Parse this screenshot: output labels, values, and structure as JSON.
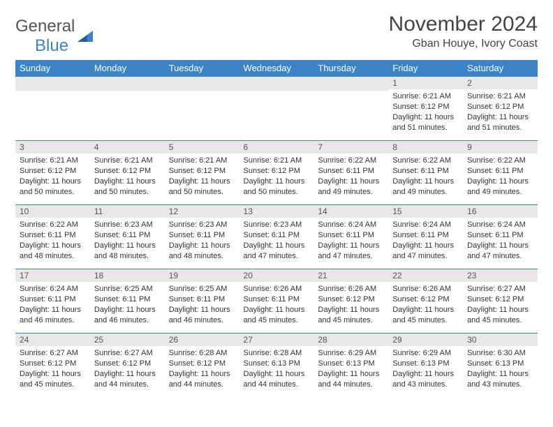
{
  "logo": {
    "text1": "General",
    "text2": "Blue"
  },
  "title": "November 2024",
  "location": "Gban Houye, Ivory Coast",
  "colors": {
    "header_bg": "#3d84c6",
    "header_fg": "#ffffff",
    "daynum_bg": "#e8e8e8",
    "rule": "#3d84c6",
    "text": "#333333"
  },
  "weekdays": [
    "Sunday",
    "Monday",
    "Tuesday",
    "Wednesday",
    "Thursday",
    "Friday",
    "Saturday"
  ],
  "weeks": [
    [
      null,
      null,
      null,
      null,
      null,
      {
        "n": "1",
        "sr": "6:21 AM",
        "ss": "6:12 PM",
        "dl": "11 hours and 51 minutes."
      },
      {
        "n": "2",
        "sr": "6:21 AM",
        "ss": "6:12 PM",
        "dl": "11 hours and 51 minutes."
      }
    ],
    [
      {
        "n": "3",
        "sr": "6:21 AM",
        "ss": "6:12 PM",
        "dl": "11 hours and 50 minutes."
      },
      {
        "n": "4",
        "sr": "6:21 AM",
        "ss": "6:12 PM",
        "dl": "11 hours and 50 minutes."
      },
      {
        "n": "5",
        "sr": "6:21 AM",
        "ss": "6:12 PM",
        "dl": "11 hours and 50 minutes."
      },
      {
        "n": "6",
        "sr": "6:21 AM",
        "ss": "6:12 PM",
        "dl": "11 hours and 50 minutes."
      },
      {
        "n": "7",
        "sr": "6:22 AM",
        "ss": "6:11 PM",
        "dl": "11 hours and 49 minutes."
      },
      {
        "n": "8",
        "sr": "6:22 AM",
        "ss": "6:11 PM",
        "dl": "11 hours and 49 minutes."
      },
      {
        "n": "9",
        "sr": "6:22 AM",
        "ss": "6:11 PM",
        "dl": "11 hours and 49 minutes."
      }
    ],
    [
      {
        "n": "10",
        "sr": "6:22 AM",
        "ss": "6:11 PM",
        "dl": "11 hours and 48 minutes."
      },
      {
        "n": "11",
        "sr": "6:23 AM",
        "ss": "6:11 PM",
        "dl": "11 hours and 48 minutes."
      },
      {
        "n": "12",
        "sr": "6:23 AM",
        "ss": "6:11 PM",
        "dl": "11 hours and 48 minutes."
      },
      {
        "n": "13",
        "sr": "6:23 AM",
        "ss": "6:11 PM",
        "dl": "11 hours and 47 minutes."
      },
      {
        "n": "14",
        "sr": "6:24 AM",
        "ss": "6:11 PM",
        "dl": "11 hours and 47 minutes."
      },
      {
        "n": "15",
        "sr": "6:24 AM",
        "ss": "6:11 PM",
        "dl": "11 hours and 47 minutes."
      },
      {
        "n": "16",
        "sr": "6:24 AM",
        "ss": "6:11 PM",
        "dl": "11 hours and 47 minutes."
      }
    ],
    [
      {
        "n": "17",
        "sr": "6:24 AM",
        "ss": "6:11 PM",
        "dl": "11 hours and 46 minutes."
      },
      {
        "n": "18",
        "sr": "6:25 AM",
        "ss": "6:11 PM",
        "dl": "11 hours and 46 minutes."
      },
      {
        "n": "19",
        "sr": "6:25 AM",
        "ss": "6:11 PM",
        "dl": "11 hours and 46 minutes."
      },
      {
        "n": "20",
        "sr": "6:26 AM",
        "ss": "6:11 PM",
        "dl": "11 hours and 45 minutes."
      },
      {
        "n": "21",
        "sr": "6:26 AM",
        "ss": "6:12 PM",
        "dl": "11 hours and 45 minutes."
      },
      {
        "n": "22",
        "sr": "6:26 AM",
        "ss": "6:12 PM",
        "dl": "11 hours and 45 minutes."
      },
      {
        "n": "23",
        "sr": "6:27 AM",
        "ss": "6:12 PM",
        "dl": "11 hours and 45 minutes."
      }
    ],
    [
      {
        "n": "24",
        "sr": "6:27 AM",
        "ss": "6:12 PM",
        "dl": "11 hours and 45 minutes."
      },
      {
        "n": "25",
        "sr": "6:27 AM",
        "ss": "6:12 PM",
        "dl": "11 hours and 44 minutes."
      },
      {
        "n": "26",
        "sr": "6:28 AM",
        "ss": "6:12 PM",
        "dl": "11 hours and 44 minutes."
      },
      {
        "n": "27",
        "sr": "6:28 AM",
        "ss": "6:13 PM",
        "dl": "11 hours and 44 minutes."
      },
      {
        "n": "28",
        "sr": "6:29 AM",
        "ss": "6:13 PM",
        "dl": "11 hours and 44 minutes."
      },
      {
        "n": "29",
        "sr": "6:29 AM",
        "ss": "6:13 PM",
        "dl": "11 hours and 43 minutes."
      },
      {
        "n": "30",
        "sr": "6:30 AM",
        "ss": "6:13 PM",
        "dl": "11 hours and 43 minutes."
      }
    ]
  ],
  "labels": {
    "sunrise": "Sunrise:",
    "sunset": "Sunset:",
    "daylight": "Daylight:"
  }
}
